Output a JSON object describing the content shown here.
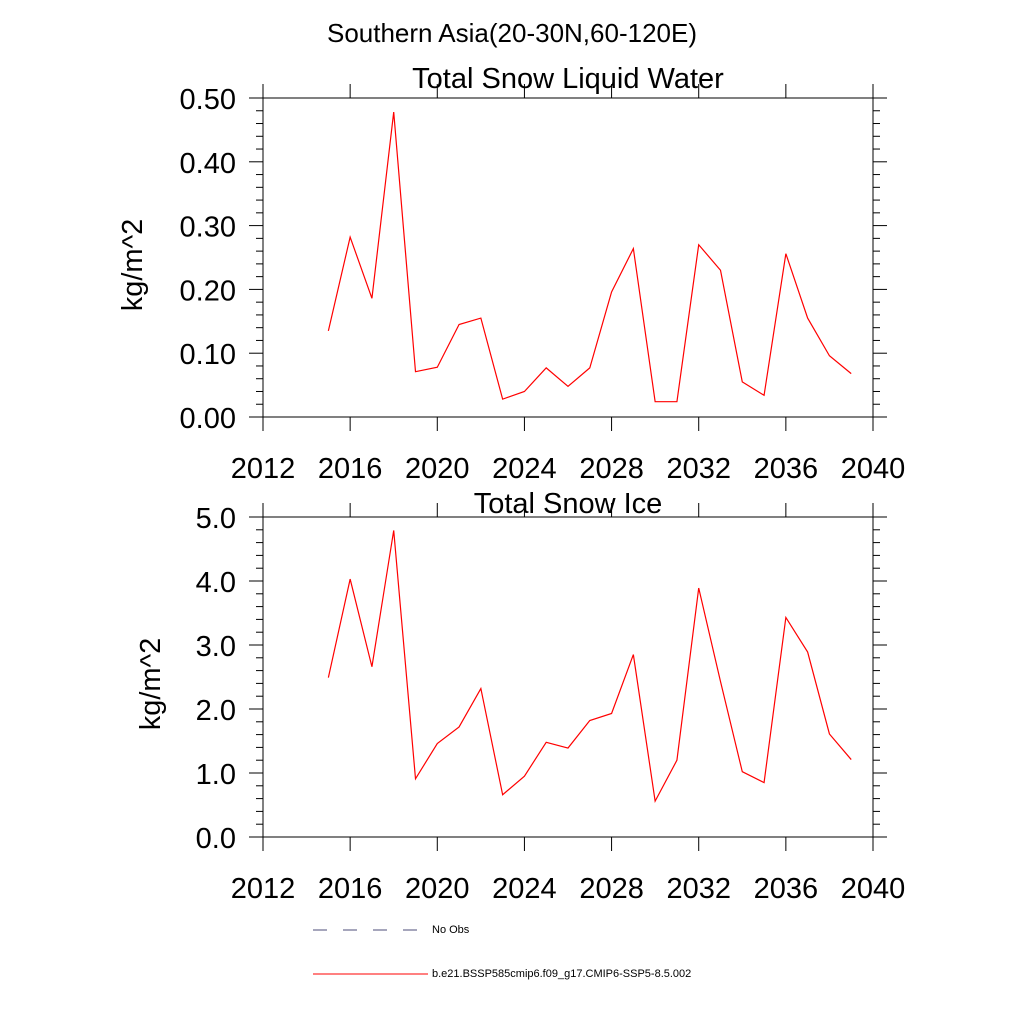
{
  "figure": {
    "supertitle": "Southern Asia(20-30N,60-120E)"
  },
  "chart_data": [
    {
      "type": "line",
      "title": "Total Snow Liquid Water",
      "xlabel": "",
      "ylabel": "kg/m^2",
      "xlim": [
        2012,
        2040
      ],
      "ylim": [
        0.0,
        0.5
      ],
      "xticks": [
        2012,
        2016,
        2020,
        2024,
        2028,
        2032,
        2036,
        2040
      ],
      "xtick_labels": [
        "2012",
        "2016",
        "2020",
        "2024",
        "2028",
        "2032",
        "2036",
        "2040"
      ],
      "yticks": [
        0.0,
        0.1,
        0.2,
        0.3,
        0.4,
        0.5
      ],
      "ytick_labels": [
        "0.00",
        "0.10",
        "0.20",
        "0.30",
        "0.40",
        "0.50"
      ],
      "grid": false,
      "x": [
        2015,
        2016,
        2017,
        2018,
        2019,
        2020,
        2021,
        2022,
        2023,
        2024,
        2025,
        2026,
        2027,
        2028,
        2029,
        2030,
        2031,
        2032,
        2033,
        2034,
        2035,
        2036,
        2037,
        2038,
        2039
      ],
      "series": [
        {
          "name": "b.e21.BSSP585cmip6.f09_g17.CMIP6-SSP5-8.5.002",
          "color": "#ff0000",
          "values": [
            0.135,
            0.282,
            0.186,
            0.478,
            0.071,
            0.078,
            0.145,
            0.155,
            0.028,
            0.04,
            0.077,
            0.048,
            0.077,
            0.196,
            0.264,
            0.024,
            0.024,
            0.27,
            0.23,
            0.055,
            0.034,
            0.256,
            0.155,
            0.096,
            0.068
          ]
        }
      ]
    },
    {
      "type": "line",
      "title": "Total Snow Ice",
      "xlabel": "",
      "ylabel": "kg/m^2",
      "xlim": [
        2012,
        2040
      ],
      "ylim": [
        0.0,
        5.0
      ],
      "xticks": [
        2012,
        2016,
        2020,
        2024,
        2028,
        2032,
        2036,
        2040
      ],
      "xtick_labels": [
        "2012",
        "2016",
        "2020",
        "2024",
        "2028",
        "2032",
        "2036",
        "2040"
      ],
      "yticks": [
        0.0,
        1.0,
        2.0,
        3.0,
        4.0,
        5.0
      ],
      "ytick_labels": [
        "0.0",
        "1.0",
        "2.0",
        "3.0",
        "4.0",
        "5.0"
      ],
      "grid": false,
      "x": [
        2015,
        2016,
        2017,
        2018,
        2019,
        2020,
        2021,
        2022,
        2023,
        2024,
        2025,
        2026,
        2027,
        2028,
        2029,
        2030,
        2031,
        2032,
        2033,
        2034,
        2035,
        2036,
        2037,
        2038,
        2039
      ],
      "series": [
        {
          "name": "b.e21.BSSP585cmip6.f09_g17.CMIP6-SSP5-8.5.002",
          "color": "#ff0000",
          "values": [
            2.49,
            4.03,
            2.66,
            4.79,
            0.91,
            1.46,
            1.72,
            2.32,
            0.66,
            0.95,
            1.48,
            1.39,
            1.82,
            1.93,
            2.85,
            0.56,
            1.2,
            3.89,
            2.43,
            1.02,
            0.85,
            3.43,
            2.89,
            1.61,
            1.21
          ]
        }
      ]
    }
  ],
  "legend": {
    "placement": "bottom",
    "entries": [
      {
        "label": "No Obs",
        "color": "#4d4d7a",
        "style": "dashed"
      },
      {
        "label": "b.e21.BSSP585cmip6.f09_g17.CMIP6-SSP5-8.5.002",
        "color": "#ff0000",
        "style": "solid"
      }
    ]
  }
}
